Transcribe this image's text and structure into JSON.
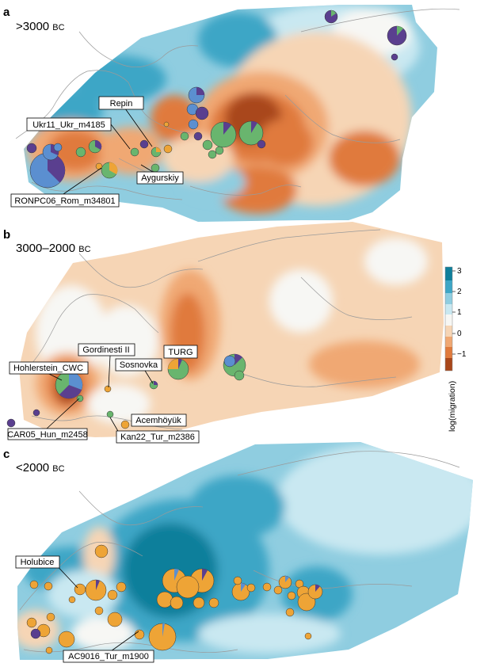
{
  "colors": {
    "deep_blue": "#0f7f9b",
    "blue": "#3ea6c6",
    "light_blue": "#8fcde0",
    "pale_blue": "#c9e8f1",
    "neutral": "#f7f7f4",
    "pale_orange": "#f6d5b5",
    "orange": "#f0a873",
    "dark_orange": "#e07a3c",
    "brown": "#a9471a",
    "pie_purple": "#5a3f8f",
    "pie_green": "#69b56e",
    "pie_blue": "#5b8fd0",
    "pie_orange": "#eea436"
  },
  "panels": [
    {
      "id": "a",
      "letter": "a",
      "period": ">3000 ",
      "era": "BC",
      "labels": [
        "Repin",
        "Ukr11_Ukr_m4185",
        "Aygurskiy",
        "RONPC06_Rom_m34801"
      ]
    },
    {
      "id": "b",
      "letter": "b",
      "period": "3000–2000 ",
      "era": "BC",
      "labels": [
        "Gordinesti II",
        "TURG",
        "Hohlerstein_CWC",
        "Sosnovka",
        "Acemhöyük",
        "CAR05_Hun_m2458",
        "Kan22_Tur_m2386"
      ]
    },
    {
      "id": "c",
      "letter": "c",
      "period": "<2000 ",
      "era": "BC",
      "labels": [
        "Holubice",
        "AC9016_Tur_m1900"
      ]
    }
  ],
  "colorbar": {
    "title": "log(migration)",
    "ticks": [
      "3",
      "2",
      "1",
      "0",
      "−1"
    ],
    "range": [
      -2,
      3
    ]
  }
}
